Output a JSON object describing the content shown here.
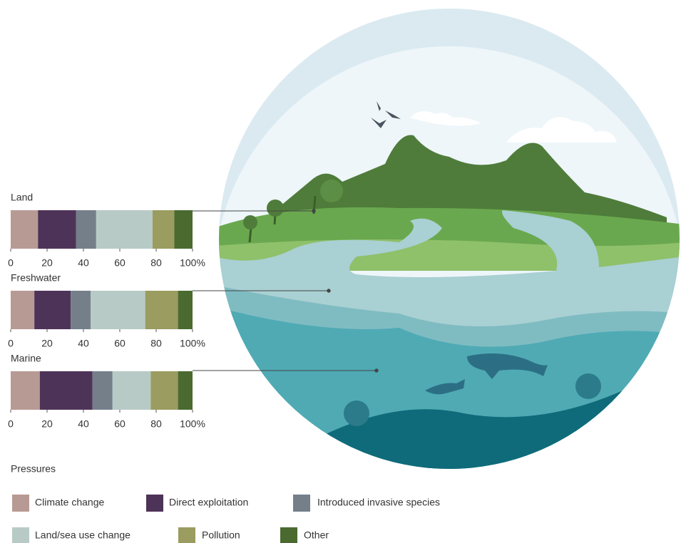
{
  "chart_data": {
    "type": "bar",
    "orientation": "horizontal",
    "stacked": true,
    "categories": [
      "Land",
      "Freshwater",
      "Marine"
    ],
    "series": [
      {
        "name": "Climate change",
        "color": "#b89a94",
        "values": [
          15,
          13,
          16
        ]
      },
      {
        "name": "Direct exploitation",
        "color": "#4e3358",
        "values": [
          21,
          20,
          29
        ]
      },
      {
        "name": "Introduced invasive species",
        "color": "#747f8a",
        "values": [
          11,
          11,
          11
        ]
      },
      {
        "name": "Land/sea use change",
        "color": "#b7cac6",
        "values": [
          31,
          30,
          21
        ]
      },
      {
        "name": "Pollution",
        "color": "#9a9c60",
        "values": [
          12,
          18,
          15
        ]
      },
      {
        "name": "Other",
        "color": "#4a6a30",
        "values": [
          10,
          8,
          8
        ]
      }
    ],
    "xlim": [
      0,
      100
    ],
    "xticks": [
      0,
      20,
      40,
      60,
      80,
      {
        "value": 100,
        "label": "100%"
      }
    ],
    "legend_title": "Pressures"
  }
}
